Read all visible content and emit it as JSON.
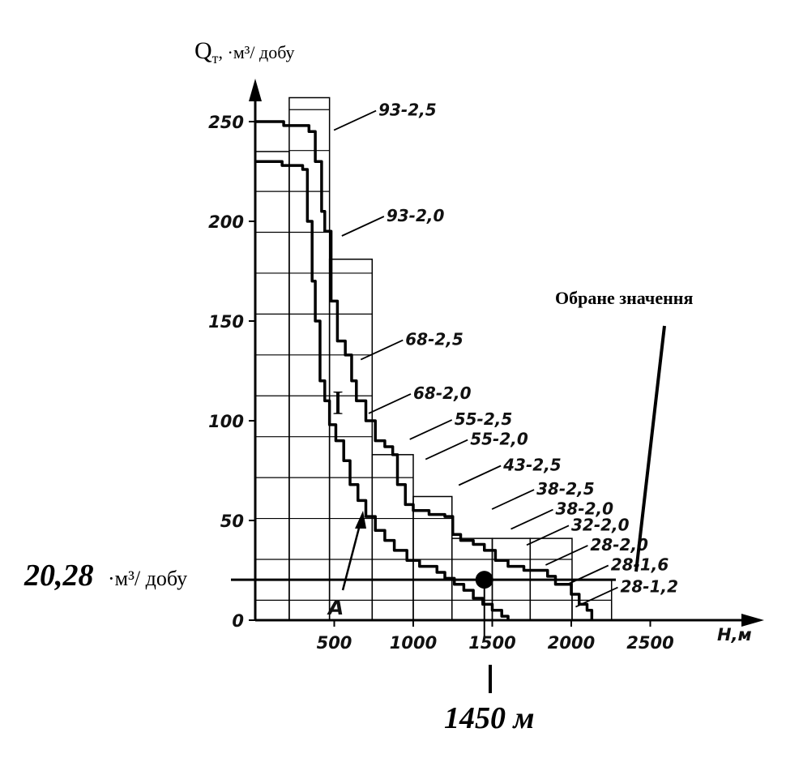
{
  "chart_data": {
    "type": "line",
    "ylabel_main": "Q",
    "ylabel_sub": "т",
    "ylabel_unit": ", ·м³/ добу",
    "xlabel": "H,м",
    "x_ticks": [
      "500",
      "1000",
      "1500",
      "2000",
      "2500"
    ],
    "y_ticks": [
      "0",
      "50",
      "100",
      "150",
      "200",
      "250"
    ],
    "xlim": [
      0,
      2750
    ],
    "ylim": [
      0,
      260
    ],
    "region_label": "I",
    "point_label": "A",
    "annotation_selected": "Обране значення",
    "selected_q_value": "20,28",
    "selected_q_unit": "·м³/ добу",
    "selected_h_label": "1450 м",
    "selected_point": {
      "x": 1450,
      "y": 20.28
    },
    "series": [
      {
        "name": "upper",
        "points": [
          [
            0,
            250
          ],
          [
            180,
            248
          ],
          [
            340,
            245
          ],
          [
            380,
            230
          ],
          [
            420,
            205
          ],
          [
            440,
            195
          ],
          [
            480,
            160
          ],
          [
            520,
            140
          ],
          [
            570,
            133
          ],
          [
            610,
            120
          ],
          [
            640,
            110
          ],
          [
            700,
            100
          ],
          [
            760,
            90
          ],
          [
            820,
            87
          ],
          [
            870,
            83
          ],
          [
            900,
            68
          ],
          [
            950,
            58
          ],
          [
            1000,
            55
          ],
          [
            1100,
            53
          ],
          [
            1200,
            52
          ],
          [
            1250,
            43
          ],
          [
            1300,
            40
          ],
          [
            1380,
            38
          ],
          [
            1450,
            35
          ],
          [
            1520,
            30
          ],
          [
            1600,
            27
          ],
          [
            1700,
            25
          ],
          [
            1850,
            22
          ],
          [
            1900,
            18
          ],
          [
            2000,
            13
          ],
          [
            2050,
            8
          ],
          [
            2100,
            5
          ],
          [
            2130,
            0
          ]
        ]
      },
      {
        "name": "lower",
        "points": [
          [
            0,
            230
          ],
          [
            170,
            228
          ],
          [
            300,
            226
          ],
          [
            330,
            200
          ],
          [
            360,
            170
          ],
          [
            380,
            150
          ],
          [
            410,
            120
          ],
          [
            440,
            110
          ],
          [
            470,
            98
          ],
          [
            510,
            90
          ],
          [
            560,
            80
          ],
          [
            600,
            68
          ],
          [
            650,
            60
          ],
          [
            700,
            52
          ],
          [
            760,
            45
          ],
          [
            820,
            40
          ],
          [
            880,
            35
          ],
          [
            960,
            30
          ],
          [
            1040,
            27
          ],
          [
            1150,
            24
          ],
          [
            1200,
            21
          ],
          [
            1260,
            18
          ],
          [
            1320,
            15
          ],
          [
            1380,
            11
          ],
          [
            1440,
            8
          ],
          [
            1500,
            5
          ],
          [
            1560,
            2
          ],
          [
            1600,
            0
          ]
        ]
      }
    ],
    "curve_labels": [
      {
        "text": "93-2,5",
        "x": 780,
        "y": 253
      },
      {
        "text": "93-2,0",
        "x": 830,
        "y": 200
      },
      {
        "text": "68-2,5",
        "x": 950,
        "y": 138
      },
      {
        "text": "68-2,0",
        "x": 1000,
        "y": 111
      },
      {
        "text": "55-2,5",
        "x": 1260,
        "y": 98
      },
      {
        "text": "55-2,0",
        "x": 1360,
        "y": 88
      },
      {
        "text": "43-2,5",
        "x": 1570,
        "y": 75
      },
      {
        "text": "38-2,5",
        "x": 1780,
        "y": 63
      },
      {
        "text": "38-2,0",
        "x": 1900,
        "y": 53
      },
      {
        "text": "32-2,0",
        "x": 2000,
        "y": 45
      },
      {
        "text": "28-2,0",
        "x": 2120,
        "y": 35
      },
      {
        "text": "28-1,6",
        "x": 2250,
        "y": 25
      },
      {
        "text": "28-1,2",
        "x": 2310,
        "y": 14
      }
    ]
  }
}
